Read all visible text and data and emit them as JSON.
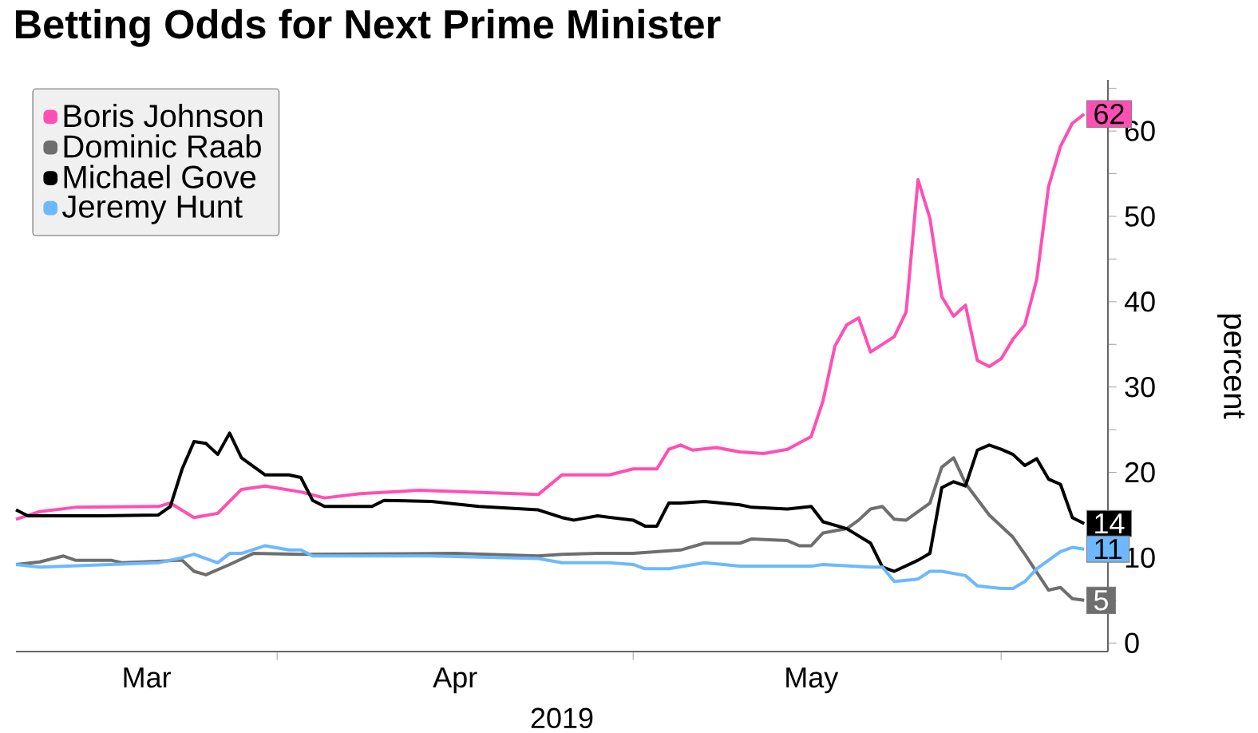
{
  "chart_data": {
    "type": "line",
    "title": "Betting Odds for Next Prime Minister",
    "xlabel": "2019",
    "ylabel": "percent",
    "xlim": [
      "2019-03-10",
      "2019-06-10"
    ],
    "ylim": [
      -1,
      66
    ],
    "xticks": [
      {
        "value": "2019-03-21",
        "label": "Mar"
      },
      {
        "value": "2019-04-01",
        "label": null
      },
      {
        "value": "2019-04-16",
        "label": "Apr"
      },
      {
        "value": "2019-05-01",
        "label": null
      },
      {
        "value": "2019-05-16",
        "label": "May"
      },
      {
        "value": "2019-06-01",
        "label": null
      }
    ],
    "yticks": [
      0,
      {
        "value": 5,
        "label": null
      },
      10,
      {
        "value": 15,
        "label": null
      },
      20,
      {
        "value": 25,
        "label": null
      },
      30,
      {
        "value": 35,
        "label": null
      },
      40,
      {
        "value": 45,
        "label": null
      },
      50,
      {
        "value": 55,
        "label": null
      },
      60,
      {
        "value": 65,
        "label": null
      }
    ],
    "legend": "top left",
    "series": [
      {
        "name": "Boris Johnson",
        "color": "#ff4fb4",
        "x": [
          "2019-03-10",
          "2019-03-12",
          "2019-03-15",
          "2019-03-22",
          "2019-03-23",
          "2019-03-25",
          "2019-03-27",
          "2019-03-29",
          "2019-03-31",
          "2019-04-03",
          "2019-04-05",
          "2019-04-08",
          "2019-04-13",
          "2019-04-23",
          "2019-04-25",
          "2019-04-29",
          "2019-05-01",
          "2019-05-03",
          "2019-05-04",
          "2019-05-05",
          "2019-05-06",
          "2019-05-08",
          "2019-05-10",
          "2019-05-12",
          "2019-05-14",
          "2019-05-16",
          "2019-05-17",
          "2019-05-18",
          "2019-05-19",
          "2019-05-20",
          "2019-05-21",
          "2019-05-23",
          "2019-05-24",
          "2019-05-25",
          "2019-05-26",
          "2019-05-27",
          "2019-05-28",
          "2019-05-29",
          "2019-05-30",
          "2019-05-31",
          "2019-06-01",
          "2019-06-02",
          "2019-06-03",
          "2019-06-04",
          "2019-06-05",
          "2019-06-06",
          "2019-06-07",
          "2019-06-08"
        ],
        "values": [
          14.5,
          15.4,
          15.9,
          16.0,
          16.4,
          14.7,
          15.2,
          18.0,
          18.4,
          17.7,
          17.0,
          17.5,
          17.9,
          17.4,
          19.7,
          19.7,
          20.4,
          20.4,
          22.7,
          23.2,
          22.6,
          22.9,
          22.4,
          22.2,
          22.7,
          24.2,
          28.4,
          34.8,
          37.3,
          38.1,
          34.1,
          35.9,
          38.8,
          54.3,
          49.8,
          40.6,
          38.3,
          39.6,
          33.1,
          32.4,
          33.3,
          35.6,
          37.3,
          42.6,
          53.5,
          58.2,
          60.9,
          62
        ],
        "value_labels": [
          null,
          null,
          null,
          null,
          null,
          null,
          null,
          null,
          null,
          null,
          null,
          null,
          null,
          null,
          null,
          null,
          null,
          null,
          null,
          null,
          null,
          null,
          null,
          null,
          null,
          null,
          null,
          null,
          null,
          null,
          null,
          null,
          null,
          null,
          null,
          null,
          null,
          null,
          null,
          null,
          null,
          null,
          null,
          null,
          null,
          null,
          null,
          "62"
        ]
      },
      {
        "name": "Dominic Raab",
        "color": "#6e6e6e",
        "x": [
          "2019-03-10",
          "2019-03-12",
          "2019-03-14",
          "2019-03-15",
          "2019-03-18",
          "2019-03-19",
          "2019-03-24",
          "2019-03-25",
          "2019-03-26",
          "2019-03-28",
          "2019-03-30",
          "2019-04-03",
          "2019-04-16",
          "2019-04-23",
          "2019-04-25",
          "2019-04-28",
          "2019-05-01",
          "2019-05-05",
          "2019-05-07",
          "2019-05-10",
          "2019-05-11",
          "2019-05-14",
          "2019-05-15",
          "2019-05-16",
          "2019-05-17",
          "2019-05-19",
          "2019-05-20",
          "2019-05-21",
          "2019-05-22",
          "2019-05-23",
          "2019-05-24",
          "2019-05-26",
          "2019-05-27",
          "2019-05-28",
          "2019-05-29",
          "2019-05-31",
          "2019-06-02",
          "2019-06-03",
          "2019-06-05",
          "2019-06-06",
          "2019-06-07",
          "2019-06-08"
        ],
        "values": [
          9.2,
          9.5,
          10.2,
          9.7,
          9.7,
          9.4,
          9.7,
          8.4,
          8.0,
          9.2,
          10.5,
          10.4,
          10.5,
          10.2,
          10.4,
          10.5,
          10.5,
          10.9,
          11.7,
          11.7,
          12.2,
          12.0,
          11.4,
          11.4,
          12.9,
          13.4,
          14.4,
          15.7,
          16.0,
          14.5,
          14.4,
          16.4,
          20.6,
          21.7,
          18.7,
          15.0,
          12.4,
          10.4,
          6.2,
          6.5,
          5.2,
          5
        ],
        "value_labels": [
          null,
          null,
          null,
          null,
          null,
          null,
          null,
          null,
          null,
          null,
          null,
          null,
          null,
          null,
          null,
          null,
          null,
          null,
          null,
          null,
          null,
          null,
          null,
          null,
          null,
          null,
          null,
          null,
          null,
          null,
          null,
          null,
          null,
          null,
          null,
          null,
          null,
          null,
          null,
          null,
          null,
          "5"
        ]
      },
      {
        "name": "Michael Gove",
        "color": "#000000",
        "x": [
          "2019-03-10",
          "2019-03-11",
          "2019-03-17",
          "2019-03-22",
          "2019-03-23",
          "2019-03-24",
          "2019-03-25",
          "2019-03-26",
          "2019-03-27",
          "2019-03-28",
          "2019-03-29",
          "2019-03-31",
          "2019-04-02",
          "2019-04-03",
          "2019-04-04",
          "2019-04-05",
          "2019-04-09",
          "2019-04-10",
          "2019-04-14",
          "2019-04-18",
          "2019-04-23",
          "2019-04-25",
          "2019-04-26",
          "2019-04-28",
          "2019-05-01",
          "2019-05-02",
          "2019-05-03",
          "2019-05-04",
          "2019-05-05",
          "2019-05-07",
          "2019-05-10",
          "2019-05-11",
          "2019-05-14",
          "2019-05-16",
          "2019-05-17",
          "2019-05-19",
          "2019-05-21",
          "2019-05-22",
          "2019-05-23",
          "2019-05-25",
          "2019-05-26",
          "2019-05-27",
          "2019-05-28",
          "2019-05-29",
          "2019-05-30",
          "2019-05-31",
          "2019-06-01",
          "2019-06-02",
          "2019-06-03",
          "2019-06-04",
          "2019-06-05",
          "2019-06-06",
          "2019-06-07",
          "2019-06-08"
        ],
        "values": [
          15.6,
          14.9,
          14.9,
          15.0,
          16.0,
          20.4,
          23.6,
          23.4,
          22.1,
          24.6,
          21.7,
          19.7,
          19.7,
          19.4,
          16.7,
          16.0,
          16.0,
          16.7,
          16.6,
          16.0,
          15.6,
          14.7,
          14.4,
          14.9,
          14.4,
          13.7,
          13.7,
          16.4,
          16.4,
          16.6,
          16.2,
          15.9,
          15.7,
          16.0,
          14.2,
          13.4,
          11.7,
          8.9,
          8.4,
          9.7,
          10.5,
          18.2,
          18.9,
          18.4,
          22.6,
          23.2,
          22.7,
          22.1,
          20.8,
          21.6,
          19.2,
          18.6,
          14.7,
          14
        ],
        "value_labels": [
          null,
          null,
          null,
          null,
          null,
          null,
          null,
          null,
          null,
          null,
          null,
          null,
          null,
          null,
          null,
          null,
          null,
          null,
          null,
          null,
          null,
          null,
          null,
          null,
          null,
          null,
          null,
          null,
          null,
          null,
          null,
          null,
          null,
          null,
          null,
          null,
          null,
          null,
          null,
          null,
          null,
          null,
          null,
          null,
          null,
          null,
          null,
          null,
          null,
          null,
          null,
          null,
          null,
          "14"
        ]
      },
      {
        "name": "Jeremy Hunt",
        "color": "#6db8ff",
        "x": [
          "2019-03-10",
          "2019-03-12",
          "2019-03-22",
          "2019-03-24",
          "2019-03-25",
          "2019-03-27",
          "2019-03-28",
          "2019-03-29",
          "2019-03-31",
          "2019-04-02",
          "2019-04-03",
          "2019-04-04",
          "2019-04-14",
          "2019-04-23",
          "2019-04-25",
          "2019-04-29",
          "2019-05-01",
          "2019-05-02",
          "2019-05-04",
          "2019-05-07",
          "2019-05-10",
          "2019-05-16",
          "2019-05-17",
          "2019-05-21",
          "2019-05-22",
          "2019-05-23",
          "2019-05-25",
          "2019-05-26",
          "2019-05-27",
          "2019-05-29",
          "2019-05-30",
          "2019-06-01",
          "2019-06-02",
          "2019-06-03",
          "2019-06-04",
          "2019-06-06",
          "2019-06-07",
          "2019-06-08"
        ],
        "values": [
          9.2,
          8.9,
          9.4,
          10.0,
          10.4,
          9.4,
          10.5,
          10.5,
          11.4,
          10.9,
          10.9,
          10.2,
          10.2,
          9.9,
          9.4,
          9.4,
          9.2,
          8.7,
          8.7,
          9.4,
          9.0,
          9.0,
          9.2,
          8.9,
          8.9,
          7.2,
          7.5,
          8.4,
          8.4,
          7.9,
          6.7,
          6.4,
          6.4,
          7.2,
          8.7,
          10.7,
          11.2,
          11
        ],
        "value_labels": [
          null,
          null,
          null,
          null,
          null,
          null,
          null,
          null,
          null,
          null,
          null,
          null,
          null,
          null,
          null,
          null,
          null,
          null,
          null,
          null,
          null,
          null,
          null,
          null,
          null,
          null,
          null,
          null,
          null,
          null,
          null,
          null,
          null,
          null,
          null,
          null,
          null,
          "11"
        ]
      }
    ]
  }
}
